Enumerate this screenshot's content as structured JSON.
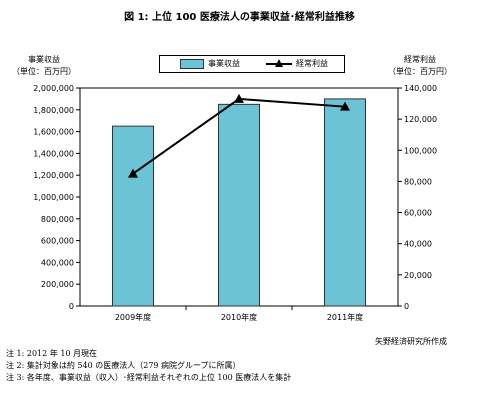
{
  "chart_data": {
    "type": "bar",
    "title": "図 1: 上位 100 医療法人の事業収益･経常利益推移",
    "categories": [
      "2009年度",
      "2010年度",
      "2011年度"
    ],
    "series": [
      {
        "name": "事業収益",
        "type": "bar",
        "axis": "left",
        "color": "#6cc3d5",
        "values": [
          1650000,
          1850000,
          1900000
        ]
      },
      {
        "name": "経常利益",
        "type": "line",
        "axis": "right",
        "color": "#000000",
        "values": [
          85000,
          133000,
          128000
        ]
      }
    ],
    "left_axis": {
      "label_line1": "事業収益",
      "label_line2": "（単位：百万円）",
      "ylim": [
        0,
        2000000
      ],
      "ticks": [
        "0",
        "200,000",
        "400,000",
        "600,000",
        "800,000",
        "1,000,000",
        "1,200,000",
        "1,400,000",
        "1,600,000",
        "1,800,000",
        "2,000,000"
      ]
    },
    "right_axis": {
      "label_line1": "経常利益",
      "label_line2": "（単位：百万円）",
      "ylim": [
        0,
        140000
      ],
      "ticks": [
        "0",
        "20,000",
        "40,000",
        "60,000",
        "80,000",
        "100,000",
        "120,000",
        "140,000"
      ]
    },
    "grid": false,
    "legend_position": "top-center"
  },
  "source": "矢野経済研究所作成",
  "notes": [
    "注 1: 2012 年 10 月現在",
    "注 2: 集計対象は約 540 の医療法人（279 病院グループに所属）",
    "注 3: 各年度、事業収益（収入）･経常利益それぞれの上位 100 医療法人を集計"
  ]
}
